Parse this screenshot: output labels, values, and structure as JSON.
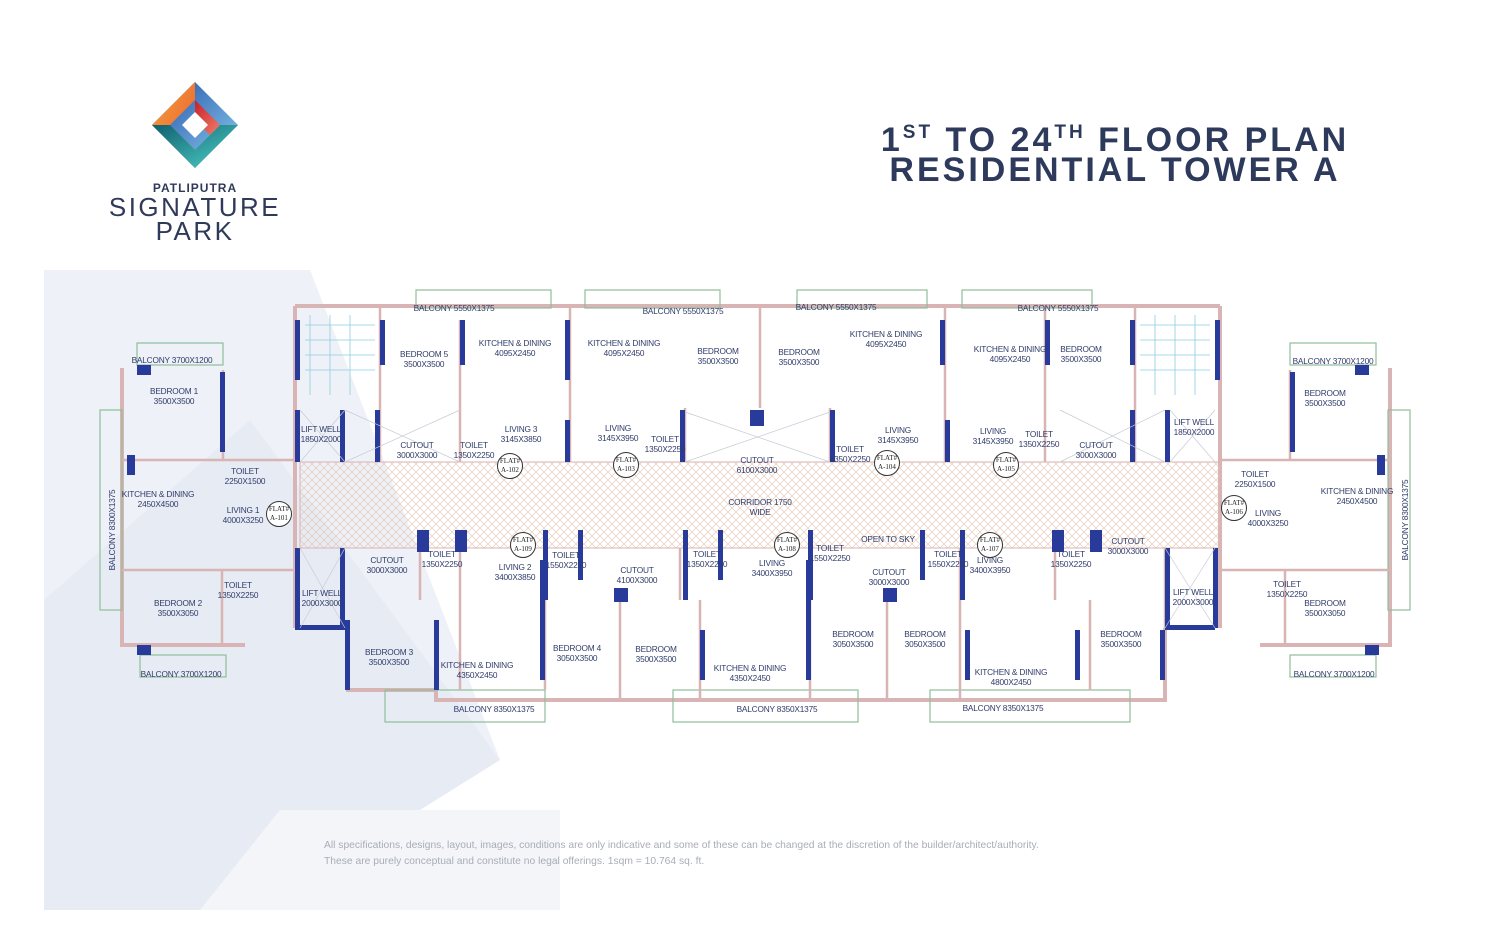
{
  "brand": {
    "top": "PATLIPUTRA",
    "line1": "SIGNATURE",
    "line2": "PARK"
  },
  "title": {
    "line1_parts": [
      "1",
      "ST",
      " TO 24",
      "TH",
      " FLOOR PLAN"
    ],
    "line2": "RESIDENTIAL TOWER A"
  },
  "colors": {
    "title": "#2d3a5c",
    "wall_column": "#283a9a",
    "wall": "#d9b8b8",
    "corridor_hatch": "#e6c9b8",
    "label": "#303c6a"
  },
  "rooms": [
    {
      "name": "BALCONY 3700X1200",
      "size": ""
    },
    {
      "name": "BEDROOM 1",
      "size": "3500X3500"
    },
    {
      "name": "TOILET",
      "size": "2250X1500"
    },
    {
      "name": "KITCHEN & DINING",
      "size": "2450X4500"
    },
    {
      "name": "LIVING 1",
      "size": "4000X3250"
    },
    {
      "name": "BALCONY 8300X1375",
      "size": ""
    },
    {
      "name": "BEDROOM 2",
      "size": "3500X3050"
    },
    {
      "name": "TOILET",
      "size": "1350X2250"
    },
    {
      "name": "BALCONY 3700X1200",
      "size": ""
    },
    {
      "name": "LIFT WELL",
      "size": "1850X2000"
    },
    {
      "name": "LIFT WELL",
      "size": "2000X3000"
    },
    {
      "name": "BEDROOM 5",
      "size": "3500X3500"
    },
    {
      "name": "BALCONY 5550X1375",
      "size": ""
    },
    {
      "name": "KITCHEN & DINING",
      "size": "4095X2450"
    },
    {
      "name": "CUTOUT",
      "size": "3000X3000"
    },
    {
      "name": "TOILET",
      "size": "1350X2250"
    },
    {
      "name": "LIVING 3",
      "size": "3145X3850"
    },
    {
      "name": "KITCHEN & DINING",
      "size": "4095X2450"
    },
    {
      "name": "BALCONY 5550X1375",
      "size": ""
    },
    {
      "name": "LIVING",
      "size": "3145X3950"
    },
    {
      "name": "BEDROOM",
      "size": "3500X3500"
    },
    {
      "name": "BEDROOM",
      "size": "3500X3500"
    },
    {
      "name": "BALCONY 5550X1375",
      "size": ""
    },
    {
      "name": "TOILET",
      "size": "1350X2250"
    },
    {
      "name": "CUTOUT",
      "size": "6100X3000"
    },
    {
      "name": "TOILET",
      "size": "1350X2250"
    },
    {
      "name": "KITCHEN & DINING",
      "size": "4095X2450"
    },
    {
      "name": "LIVING",
      "size": "3145X3950"
    },
    {
      "name": "CORRIDOR  1750",
      "size": "WIDE"
    },
    {
      "name": "KITCHEN & DINING",
      "size": "4095X2450"
    },
    {
      "name": "BALCONY 5550X1375",
      "size": ""
    },
    {
      "name": "BEDROOM",
      "size": "3500X3500"
    },
    {
      "name": "LIVING",
      "size": "3145X3950"
    },
    {
      "name": "TOILET",
      "size": "1350X2250"
    },
    {
      "name": "CUTOUT",
      "size": "3000X3000"
    },
    {
      "name": "LIFT WELL",
      "size": "1850X2000"
    },
    {
      "name": "BALCONY 3700X1200",
      "size": ""
    },
    {
      "name": "BEDROOM",
      "size": "3500X3500"
    },
    {
      "name": "TOILET",
      "size": "2250X1500"
    },
    {
      "name": "KITCHEN & DINING",
      "size": "2450X4500"
    },
    {
      "name": "LIVING",
      "size": "4000X3250"
    },
    {
      "name": "BALCONY 8300X1375",
      "size": ""
    },
    {
      "name": "TOILET",
      "size": "1350X2250"
    },
    {
      "name": "BEDROOM",
      "size": "3500X3050"
    },
    {
      "name": "BALCONY 3700X1200",
      "size": ""
    },
    {
      "name": "CUTOUT",
      "size": "3000X3000"
    },
    {
      "name": "TOILET",
      "size": "1350X2250"
    },
    {
      "name": "LIVING 2",
      "size": "3400X3850"
    },
    {
      "name": "BEDROOM 3",
      "size": "3500X3500"
    },
    {
      "name": "KITCHEN & DINING",
      "size": "4350X2450"
    },
    {
      "name": "BALCONY 8350X1375",
      "size": ""
    },
    {
      "name": "TOILET",
      "size": "1550X2250"
    },
    {
      "name": "CUTOUT",
      "size": "4100X3000"
    },
    {
      "name": "BEDROOM 4",
      "size": "3050X3500"
    },
    {
      "name": "BEDROOM",
      "size": "3500X3500"
    },
    {
      "name": "TOILET",
      "size": "1350X2250"
    },
    {
      "name": "LIVING",
      "size": "3400X3950"
    },
    {
      "name": "KITCHEN & DINING",
      "size": "4350X2450"
    },
    {
      "name": "BALCONY 8350X1375",
      "size": ""
    },
    {
      "name": "TOILET",
      "size": "1550X2250"
    },
    {
      "name": "OPEN TO SKY",
      "size": ""
    },
    {
      "name": "CUTOUT",
      "size": "3000X3000"
    },
    {
      "name": "TOILET",
      "size": "1550X2250"
    },
    {
      "name": "BEDROOM",
      "size": "3050X3500"
    },
    {
      "name": "BEDROOM",
      "size": "3050X3500"
    },
    {
      "name": "LIVING",
      "size": "3400X3950"
    },
    {
      "name": "TOILET",
      "size": "1350X2250"
    },
    {
      "name": "CUTOUT",
      "size": "3000X3000"
    },
    {
      "name": "LIFT WELL",
      "size": "2000X3000"
    },
    {
      "name": "BEDROOM",
      "size": "3500X3500"
    },
    {
      "name": "KITCHEN & DINING",
      "size": "4800X2450"
    },
    {
      "name": "BALCONY 8350X1375",
      "size": ""
    }
  ],
  "flats": [
    {
      "label": "FLAT#",
      "id": "A-101"
    },
    {
      "label": "FLAT#",
      "id": "A-102"
    },
    {
      "label": "FLAT#",
      "id": "A-103"
    },
    {
      "label": "FLAT#",
      "id": "A-104"
    },
    {
      "label": "FLAT#",
      "id": "A-105"
    },
    {
      "label": "FLAT#",
      "id": "A-106"
    },
    {
      "label": "FLAT#",
      "id": "A-107"
    },
    {
      "label": "FLAT#",
      "id": "A-108"
    },
    {
      "label": "FLAT#",
      "id": "A-109"
    }
  ],
  "disclaimer": {
    "line1": "All specifications, designs, layout, images, conditions are only indicative and some of these can be changed at the discretion of the builder/architect/authority.",
    "line2": "These are purely conceptual and constitute no legal offerings.  1sqm = 10.764 sq. ft."
  }
}
